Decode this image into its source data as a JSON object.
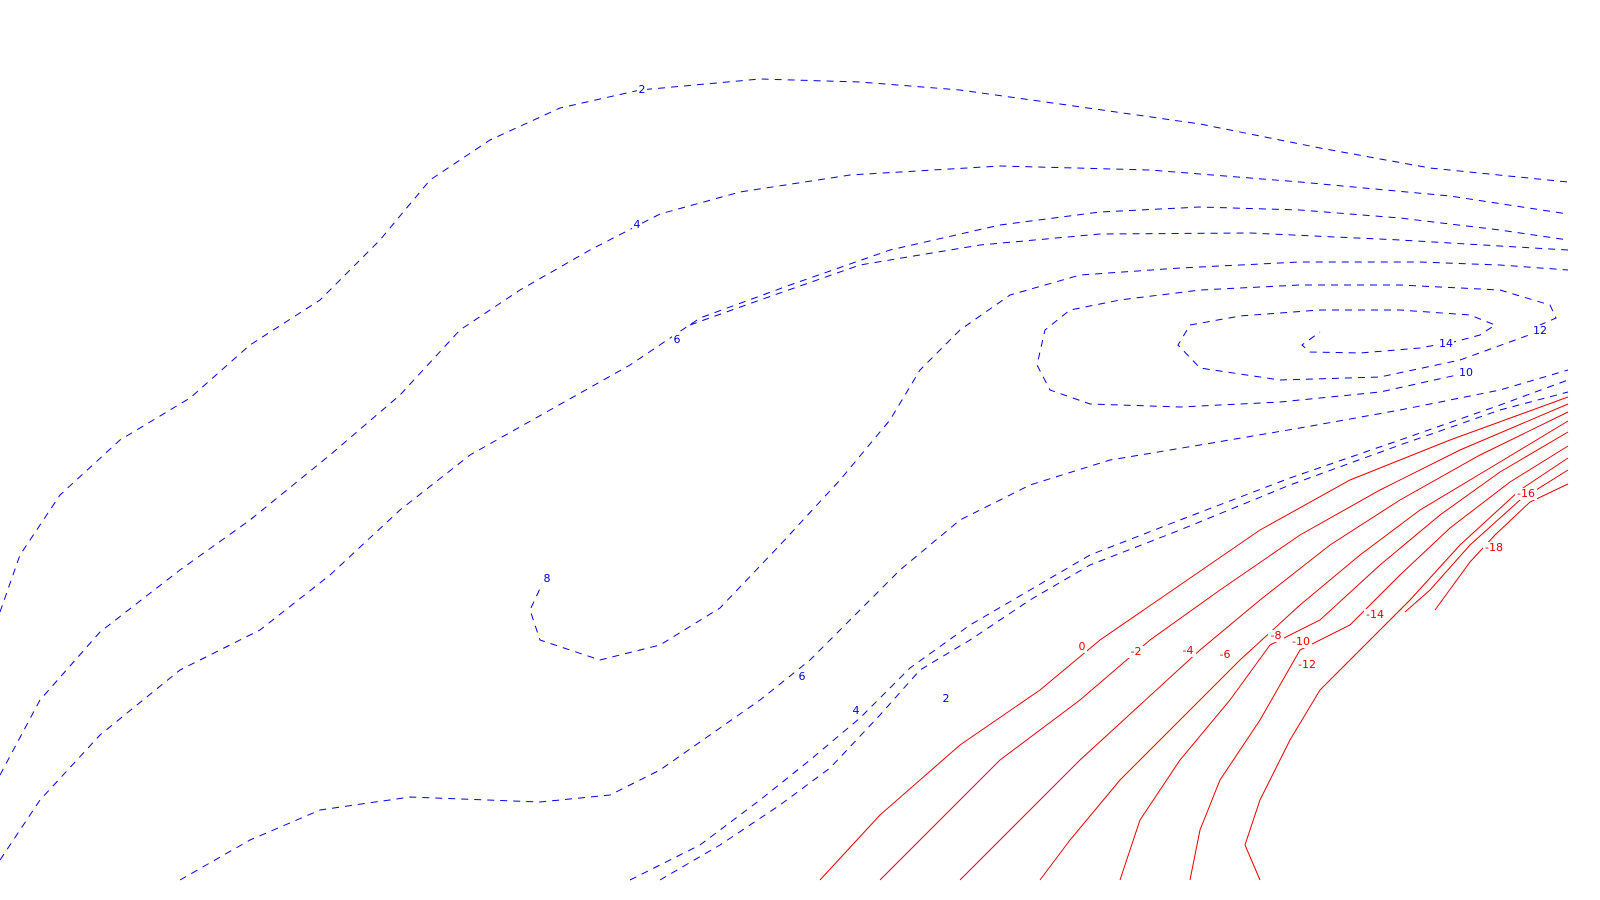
{
  "chart_data": {
    "type": "contour",
    "title": "",
    "xlabel": "",
    "ylabel": "",
    "positive_style": {
      "color": "#0000ee",
      "dash": "dashed"
    },
    "negative_style": {
      "color": "#ee0000",
      "dash": "solid"
    },
    "contour_levels": [
      {
        "level": 2,
        "sign": "positive",
        "labels": [
          "2",
          "2"
        ]
      },
      {
        "level": 4,
        "sign": "positive",
        "labels": [
          "4",
          "4"
        ]
      },
      {
        "level": 6,
        "sign": "positive",
        "labels": [
          "6",
          "6"
        ]
      },
      {
        "level": 8,
        "sign": "positive",
        "labels": [
          "8"
        ]
      },
      {
        "level": 10,
        "sign": "positive",
        "labels": [
          "10"
        ]
      },
      {
        "level": 12,
        "sign": "positive",
        "labels": [
          "12"
        ]
      },
      {
        "level": 14,
        "sign": "positive",
        "labels": [
          "14"
        ]
      },
      {
        "level": 0,
        "sign": "zero",
        "labels": [
          "0"
        ]
      },
      {
        "level": -2,
        "sign": "negative",
        "labels": [
          "-2"
        ]
      },
      {
        "level": -4,
        "sign": "negative",
        "labels": [
          "-4"
        ]
      },
      {
        "level": -6,
        "sign": "negative",
        "labels": [
          "-6"
        ]
      },
      {
        "level": -8,
        "sign": "negative",
        "labels": [
          "-8"
        ]
      },
      {
        "level": -10,
        "sign": "negative",
        "labels": [
          "-10"
        ]
      },
      {
        "level": -12,
        "sign": "negative",
        "labels": [
          "-12"
        ]
      },
      {
        "level": -14,
        "sign": "negative",
        "labels": [
          "-14"
        ]
      },
      {
        "level": -16,
        "sign": "negative",
        "labels": [
          "-16"
        ]
      },
      {
        "level": -18,
        "sign": "negative",
        "labels": [
          "-18"
        ]
      }
    ]
  }
}
